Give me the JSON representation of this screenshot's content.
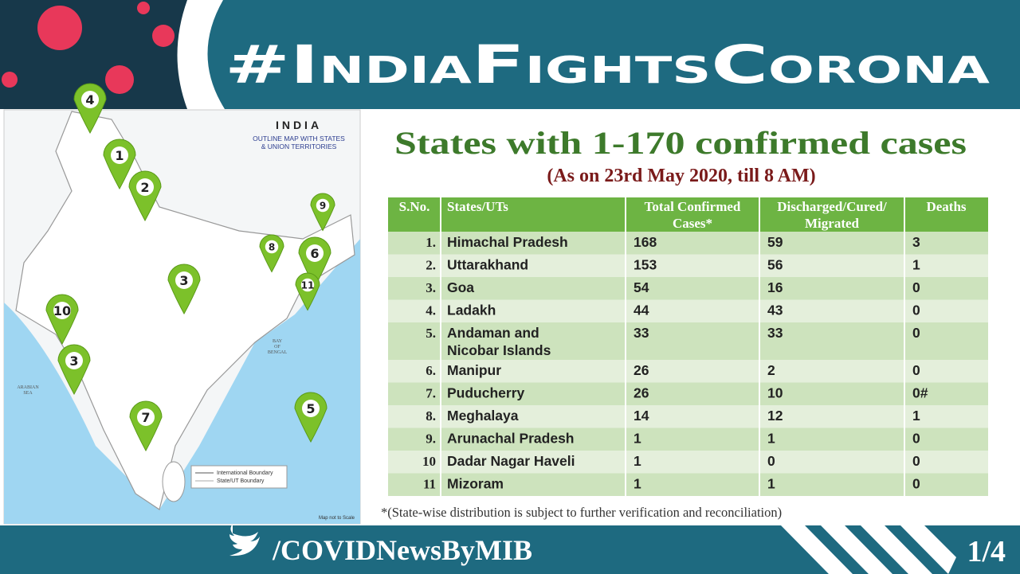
{
  "header": {
    "title": "#IndiaFightsCorona"
  },
  "map": {
    "title": "INDIA",
    "subtitle_line1": "OUTLINE MAP WITH STATES",
    "subtitle_line2": "& UNION TERRITORIES",
    "bay_line1": "BAY",
    "bay_line2": "OF",
    "bay_line3": "BENGAL",
    "sea_line1": "ARABIAN",
    "sea_line2": "SEA",
    "legend": [
      "International Boundary",
      "State/UT Boundary"
    ],
    "note": "Map not to Scale",
    "markers": [
      "4",
      "1",
      "2",
      "9",
      "8",
      "6",
      "3",
      "11",
      "10",
      "3",
      "7",
      "5"
    ]
  },
  "heading": "States with 1-170 confirmed cases",
  "subheading": "(As on 23rd May 2020, till 8 AM)",
  "table": {
    "columns": [
      [
        "S.No."
      ],
      [
        "States/UTs"
      ],
      [
        "Total Confirmed",
        "Cases*"
      ],
      [
        "Discharged/Cured/",
        "Migrated"
      ],
      [
        "Deaths"
      ]
    ],
    "rows": [
      [
        "1.",
        [
          "Himachal Pradesh"
        ],
        "168",
        "59",
        "3"
      ],
      [
        "2.",
        [
          "Uttarakhand"
        ],
        "153",
        "56",
        "1"
      ],
      [
        "3.",
        [
          "Goa"
        ],
        "54",
        "16",
        "0"
      ],
      [
        "4.",
        [
          "Ladakh"
        ],
        "44",
        "43",
        "0"
      ],
      [
        "5.",
        [
          "Andaman and",
          "Nicobar Islands"
        ],
        "33",
        "33",
        "0"
      ],
      [
        "6.",
        [
          "Manipur"
        ],
        "26",
        "2",
        "0"
      ],
      [
        "7.",
        [
          "Puducherry"
        ],
        "26",
        "10",
        "0#"
      ],
      [
        "8.",
        [
          "Meghalaya"
        ],
        "14",
        "12",
        "1"
      ],
      [
        "9.",
        [
          "Arunachal Pradesh"
        ],
        "1",
        "1",
        "0"
      ],
      [
        "10",
        [
          "Dadar Nagar Haveli"
        ],
        "1",
        "0",
        "0"
      ],
      [
        "11",
        [
          "Mizoram"
        ],
        "1",
        "1",
        "0"
      ]
    ]
  },
  "footnote": "*(State-wise distribution is subject to further verification and reconciliation)",
  "footer": {
    "handle": "/COVIDNewsByMIB",
    "page": "1/4"
  }
}
